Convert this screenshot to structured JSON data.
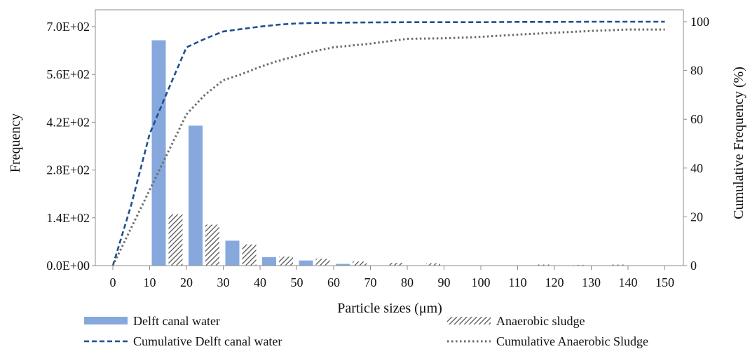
{
  "chart_data": {
    "type": "bar",
    "title": "",
    "xlabel": "Particle sizes (μm)",
    "ylabel": "Frequency",
    "y2label": "Cumulative Frequency (%)",
    "x_ticks": [
      "0",
      "10",
      "20",
      "30",
      "40",
      "50",
      "60",
      "70",
      "80",
      "90",
      "100",
      "110",
      "120",
      "130",
      "140",
      "150"
    ],
    "y_ticks": [
      "0.0E+00",
      "1.4E+02",
      "2.8E+02",
      "4.2E+02",
      "5.6E+02",
      "7.0E+02"
    ],
    "y2_ticks": [
      "0",
      "20",
      "40",
      "60",
      "80",
      "100"
    ],
    "ylim": [
      0,
      700
    ],
    "y2lim": [
      0,
      100
    ],
    "xlim": [
      0,
      150
    ],
    "grid": false,
    "legend_position": "bottom",
    "bar_series": [
      {
        "name": "Delft canal water",
        "color": "#86a8dc",
        "x": [
          10,
          20,
          30,
          40,
          50,
          60,
          70,
          80,
          90,
          100,
          110,
          120,
          130
        ],
        "values": [
          660,
          410,
          73,
          25,
          15,
          5,
          0,
          0,
          0,
          0,
          0,
          0,
          0
        ]
      },
      {
        "name": "Anaerobic sludge",
        "color": "#555555",
        "pattern": "diagonal-hatch",
        "x": [
          10,
          20,
          30,
          40,
          50,
          60,
          70,
          80,
          90,
          100,
          110,
          120,
          130
        ],
        "values": [
          150,
          120,
          62,
          26,
          20,
          12,
          8,
          7,
          1,
          1,
          3,
          2,
          3
        ]
      }
    ],
    "line_series": [
      {
        "name": "Cumulative Delft canal water",
        "color": "#1f4f8f",
        "style": "dashed",
        "x": [
          0,
          5,
          10,
          15,
          20,
          25,
          30,
          35,
          40,
          45,
          50,
          55,
          60,
          70,
          80,
          90,
          100,
          110,
          120,
          130,
          140,
          150
        ],
        "values": [
          0,
          25,
          54,
          72,
          89.5,
          93,
          96,
          97,
          98,
          98.8,
          99.3,
          99.5,
          99.6,
          99.7,
          99.8,
          99.8,
          99.8,
          99.9,
          99.9,
          100,
          100,
          100
        ]
      },
      {
        "name": "Cumulative Anaerobic Sludge",
        "color": "#6b6b6b",
        "style": "dotted",
        "x": [
          0,
          10,
          20,
          25,
          30,
          35,
          40,
          45,
          50,
          55,
          60,
          70,
          80,
          90,
          100,
          110,
          120,
          130,
          140,
          150
        ],
        "values": [
          0,
          31,
          62,
          70,
          76,
          78.5,
          81.5,
          84,
          86,
          88,
          89.5,
          91,
          93,
          93.2,
          93.8,
          94.7,
          95.5,
          96.2,
          96.8,
          96.8
        ]
      }
    ]
  }
}
